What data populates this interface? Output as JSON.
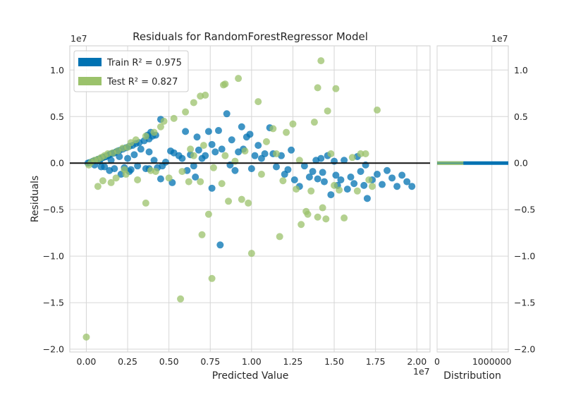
{
  "chart_data": {
    "type": "scatter",
    "title": "Residuals for RandomForestRegressor Model",
    "xlabel": "Predicted Value",
    "ylabel": "Residuals",
    "x_offset_label": "1e7",
    "y_offset_label": "1e7",
    "xlim": [
      -1000000,
      20800000
    ],
    "ylim": [
      -20300000,
      12600000
    ],
    "xticks": [
      0,
      2500000,
      5000000,
      7500000,
      10000000,
      12500000,
      15000000,
      17500000,
      20000000
    ],
    "xtick_labels": [
      "0.00",
      "0.25",
      "0.50",
      "0.75",
      "1.00",
      "1.25",
      "1.50",
      "1.75",
      "2.00"
    ],
    "yticks": [
      -20000000,
      -15000000,
      -10000000,
      -5000000,
      0,
      5000000,
      10000000
    ],
    "ytick_labels": [
      "−2.0",
      "−1.5",
      "−1.0",
      "−0.5",
      "0.0",
      "0.5",
      "1.0"
    ],
    "grid": true,
    "legend_position": "top-left",
    "zero_line": true,
    "series": [
      {
        "name": "Train",
        "legend_label": "Train R² = 0.975",
        "color": "#0072B2",
        "points": [
          [
            100000,
            0
          ],
          [
            200000,
            50000
          ],
          [
            300000,
            100000
          ],
          [
            400000,
            200000
          ],
          [
            500000,
            250000
          ],
          [
            600000,
            300000
          ],
          [
            700000,
            400000
          ],
          [
            800000,
            450000
          ],
          [
            900000,
            500000
          ],
          [
            1000000,
            600000
          ],
          [
            1100000,
            650000
          ],
          [
            1200000,
            700000
          ],
          [
            1300000,
            800000
          ],
          [
            1400000,
            900000
          ],
          [
            1500000,
            1000000
          ],
          [
            1600000,
            1050000
          ],
          [
            1700000,
            1100000
          ],
          [
            1800000,
            1200000
          ],
          [
            1900000,
            1300000
          ],
          [
            2000000,
            1350000
          ],
          [
            2200000,
            1500000
          ],
          [
            2400000,
            1650000
          ],
          [
            2600000,
            1800000
          ],
          [
            2800000,
            1900000
          ],
          [
            3000000,
            2100000
          ],
          [
            3200000,
            2200000
          ],
          [
            3500000,
            2400000
          ],
          [
            3800000,
            2600000
          ],
          [
            4000000,
            2900000
          ],
          [
            4200000,
            3000000
          ],
          [
            4500000,
            4700000
          ],
          [
            3700000,
            3000000
          ],
          [
            3900000,
            3300000
          ],
          [
            500000,
            -200000
          ],
          [
            800000,
            200000
          ],
          [
            1100000,
            -400000
          ],
          [
            1500000,
            300000
          ],
          [
            1700000,
            -600000
          ],
          [
            2000000,
            700000
          ],
          [
            2300000,
            -500000
          ],
          [
            2500000,
            500000
          ],
          [
            2700000,
            -700000
          ],
          [
            2900000,
            900000
          ],
          [
            3100000,
            -300000
          ],
          [
            3300000,
            1500000
          ],
          [
            3600000,
            -600000
          ],
          [
            3800000,
            1200000
          ],
          [
            4100000,
            300000
          ],
          [
            4300000,
            -500000
          ],
          [
            4600000,
            -300000
          ],
          [
            4800000,
            100000
          ],
          [
            5100000,
            1300000
          ],
          [
            5300000,
            1100000
          ],
          [
            5600000,
            800000
          ],
          [
            5800000,
            500000
          ],
          [
            6000000,
            3400000
          ],
          [
            6100000,
            -800000
          ],
          [
            6300000,
            900000
          ],
          [
            6500000,
            -300000
          ],
          [
            6700000,
            2800000
          ],
          [
            6800000,
            1400000
          ],
          [
            7000000,
            500000
          ],
          [
            7200000,
            800000
          ],
          [
            7400000,
            3400000
          ],
          [
            7600000,
            2000000
          ],
          [
            7800000,
            1200000
          ],
          [
            8000000,
            3500000
          ],
          [
            8200000,
            1500000
          ],
          [
            8500000,
            5300000
          ],
          [
            8700000,
            -200000
          ],
          [
            8800000,
            2500000
          ],
          [
            9000000,
            -800000
          ],
          [
            9200000,
            1200000
          ],
          [
            9400000,
            3900000
          ],
          [
            9500000,
            1500000
          ],
          [
            9700000,
            2800000
          ],
          [
            9900000,
            3100000
          ],
          [
            10000000,
            -600000
          ],
          [
            10200000,
            800000
          ],
          [
            10400000,
            1900000
          ],
          [
            10600000,
            500000
          ],
          [
            10800000,
            1000000
          ],
          [
            11100000,
            3800000
          ],
          [
            11300000,
            1000000
          ],
          [
            11500000,
            -400000
          ],
          [
            11800000,
            800000
          ],
          [
            12000000,
            -1200000
          ],
          [
            12400000,
            1400000
          ],
          [
            12600000,
            -1800000
          ],
          [
            12900000,
            -2500000
          ],
          [
            13200000,
            -300000
          ],
          [
            13500000,
            -1500000
          ],
          [
            13700000,
            -900000
          ],
          [
            14000000,
            -1700000
          ],
          [
            14200000,
            500000
          ],
          [
            14400000,
            -2000000
          ],
          [
            14600000,
            800000
          ],
          [
            14800000,
            -3400000
          ],
          [
            15000000,
            200000
          ],
          [
            15200000,
            -2400000
          ],
          [
            15400000,
            -1800000
          ],
          [
            15600000,
            300000
          ],
          [
            15800000,
            -2800000
          ],
          [
            16000000,
            -1500000
          ],
          [
            16200000,
            -2200000
          ],
          [
            16400000,
            700000
          ],
          [
            16600000,
            -900000
          ],
          [
            16800000,
            -2400000
          ],
          [
            17000000,
            -3800000
          ],
          [
            17300000,
            -1800000
          ],
          [
            17600000,
            -1200000
          ],
          [
            17900000,
            -2300000
          ],
          [
            18200000,
            -800000
          ],
          [
            18500000,
            -1600000
          ],
          [
            18800000,
            -2500000
          ],
          [
            19100000,
            -1300000
          ],
          [
            19400000,
            -2000000
          ],
          [
            19700000,
            -2500000
          ],
          [
            14300000,
            -1000000
          ],
          [
            15100000,
            -1300000
          ],
          [
            13900000,
            300000
          ],
          [
            16900000,
            -200000
          ],
          [
            12200000,
            -700000
          ],
          [
            8100000,
            -8800000
          ],
          [
            7600000,
            -2700000
          ],
          [
            5200000,
            -2100000
          ],
          [
            6600000,
            -1500000
          ],
          [
            4500000,
            -1700000
          ],
          [
            3800000,
            -600000
          ],
          [
            2600000,
            -900000
          ],
          [
            2100000,
            -1200000
          ],
          [
            1400000,
            -800000
          ],
          [
            900000,
            -400000
          ]
        ]
      },
      {
        "name": "Test",
        "legend_label": "Test R² = 0.827",
        "color": "#9BC26B",
        "points": [
          [
            0,
            -18700000
          ],
          [
            150000,
            -200000
          ],
          [
            300000,
            100000
          ],
          [
            500000,
            300000
          ],
          [
            700000,
            400000
          ],
          [
            900000,
            600000
          ],
          [
            1100000,
            800000
          ],
          [
            1300000,
            1000000
          ],
          [
            1600000,
            1100000
          ],
          [
            1900000,
            1300000
          ],
          [
            2200000,
            1600000
          ],
          [
            2500000,
            1700000
          ],
          [
            2700000,
            2200000
          ],
          [
            3000000,
            2500000
          ],
          [
            3600000,
            2900000
          ],
          [
            4100000,
            3300000
          ],
          [
            4500000,
            3900000
          ],
          [
            4700000,
            4500000
          ],
          [
            5300000,
            4800000
          ],
          [
            6000000,
            5500000
          ],
          [
            6500000,
            6500000
          ],
          [
            6900000,
            7200000
          ],
          [
            7200000,
            7300000
          ],
          [
            8300000,
            8400000
          ],
          [
            8400000,
            8500000
          ],
          [
            9200000,
            9100000
          ],
          [
            700000,
            -2500000
          ],
          [
            1000000,
            -1900000
          ],
          [
            1500000,
            -2100000
          ],
          [
            1800000,
            -1600000
          ],
          [
            2300000,
            -700000
          ],
          [
            3600000,
            -4300000
          ],
          [
            3900000,
            -800000
          ],
          [
            5700000,
            -14600000
          ],
          [
            6200000,
            -2000000
          ],
          [
            6500000,
            800000
          ],
          [
            7000000,
            -7700000
          ],
          [
            7400000,
            -5500000
          ],
          [
            7600000,
            -12400000
          ],
          [
            8400000,
            800000
          ],
          [
            8600000,
            -4100000
          ],
          [
            9000000,
            200000
          ],
          [
            9400000,
            -3900000
          ],
          [
            9800000,
            -4300000
          ],
          [
            10000000,
            -9700000
          ],
          [
            10400000,
            6600000
          ],
          [
            10900000,
            2300000
          ],
          [
            11300000,
            3700000
          ],
          [
            11700000,
            -7900000
          ],
          [
            12100000,
            3300000
          ],
          [
            12500000,
            4200000
          ],
          [
            12900000,
            300000
          ],
          [
            13000000,
            -6600000
          ],
          [
            13300000,
            -5200000
          ],
          [
            13600000,
            -3000000
          ],
          [
            13800000,
            4400000
          ],
          [
            14000000,
            8100000
          ],
          [
            14200000,
            11000000
          ],
          [
            14300000,
            -4800000
          ],
          [
            14600000,
            5600000
          ],
          [
            14800000,
            1000000
          ],
          [
            15000000,
            -2400000
          ],
          [
            15100000,
            8000000
          ],
          [
            15300000,
            -2900000
          ],
          [
            15600000,
            -5900000
          ],
          [
            16100000,
            600000
          ],
          [
            16400000,
            -3000000
          ],
          [
            16600000,
            1000000
          ],
          [
            16900000,
            1000000
          ],
          [
            17100000,
            -1800000
          ],
          [
            17300000,
            -2500000
          ],
          [
            17600000,
            5700000
          ],
          [
            5000000,
            -1600000
          ],
          [
            5800000,
            -900000
          ],
          [
            6900000,
            -2000000
          ],
          [
            7700000,
            -500000
          ],
          [
            8200000,
            -2200000
          ],
          [
            4200000,
            -900000
          ],
          [
            3100000,
            -1800000
          ],
          [
            2400000,
            -1200000
          ],
          [
            11900000,
            -1900000
          ],
          [
            12700000,
            -2800000
          ],
          [
            13400000,
            -5500000
          ],
          [
            14000000,
            -5800000
          ],
          [
            14500000,
            -6000000
          ],
          [
            6300000,
            1500000
          ],
          [
            7100000,
            1900000
          ],
          [
            9600000,
            1300000
          ],
          [
            10600000,
            -1200000
          ],
          [
            11500000,
            1000000
          ]
        ]
      }
    ],
    "distribution": {
      "xlabel": "Distribution",
      "xlim": [
        0,
        1300000
      ],
      "xticks": [
        0,
        1000000
      ],
      "xtick_labels": [
        "0",
        "1000000"
      ],
      "ylim": [
        -20300000,
        12600000
      ],
      "yticks": [
        -20000000,
        -15000000,
        -10000000,
        -5000000,
        0,
        5000000,
        10000000
      ],
      "ytick_labels": [
        "−2.0",
        "−1.5",
        "−1.0",
        "−0.5",
        "0.0",
        "0.5",
        "1.0"
      ],
      "x_offset_label": "1e7",
      "bars": [
        {
          "series": "Train",
          "y": 0,
          "length": 1300000,
          "color": "#0072B2"
        },
        {
          "series": "Test",
          "y": 0,
          "length": 480000,
          "color": "#9BC26B"
        }
      ]
    }
  }
}
